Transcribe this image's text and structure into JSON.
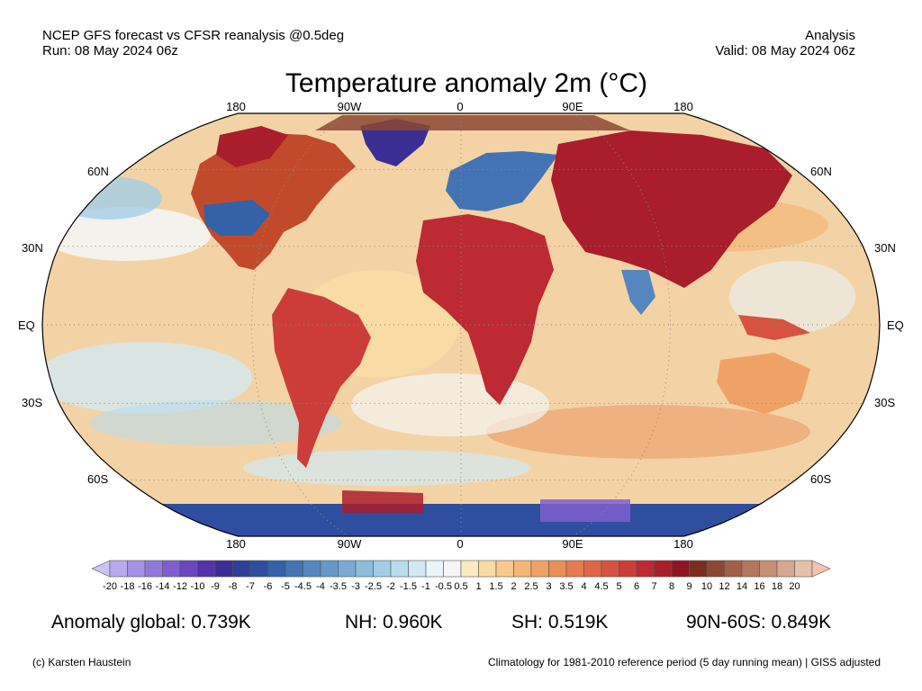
{
  "header": {
    "left_line1": "NCEP GFS forecast vs CFSR reanalysis @0.5deg",
    "left_line2": "Run: 08 May 2024 06z",
    "right_line1": "Analysis",
    "right_line2": "Valid: 08 May 2024 06z"
  },
  "title": "Temperature anomaly 2m (°C)",
  "map": {
    "projection": "robinson",
    "lon_labels_top": [
      "180",
      "90W",
      "0",
      "90E",
      "180"
    ],
    "lon_labels_bottom": [
      "180",
      "90W",
      "0",
      "90E",
      "180"
    ],
    "lat_labels": [
      "60N",
      "30N",
      "EQ",
      "30S",
      "60S"
    ],
    "gridlines": "dotted",
    "ocean_color": "#f3d3a6",
    "land_color": "#c24a2c"
  },
  "colorbar": {
    "ticks": [
      "-20",
      "-18",
      "-16",
      "-14",
      "-12",
      "-10",
      "-9",
      "-8",
      "-7",
      "-6",
      "-5",
      "-4.5",
      "-4",
      "-3.5",
      "-3",
      "-2.5",
      "-2",
      "-1.5",
      "-1",
      "-0.5",
      "0.5",
      "1",
      "1.5",
      "2",
      "2.5",
      "3",
      "3.5",
      "4",
      "4.5",
      "5",
      "6",
      "7",
      "8",
      "9",
      "10",
      "12",
      "14",
      "16",
      "18",
      "20"
    ],
    "low_color": "#c9c3f5",
    "high_color": "#f2c4b0",
    "colors": [
      "#b7a9ee",
      "#a591e6",
      "#9378db",
      "#7f5fce",
      "#6a47bd",
      "#5532a8",
      "#3a2e95",
      "#2f3f96",
      "#2f4e9f",
      "#3561a8",
      "#4473b3",
      "#5586be",
      "#6698c9",
      "#79aad3",
      "#8dbcdc",
      "#a3cde5",
      "#badcec",
      "#d2e9f3",
      "#e9f4f9",
      "#f5f5f5",
      "#fbe9c2",
      "#f9dba6",
      "#f7c98c",
      "#f4b677",
      "#f0a266",
      "#eb8f59",
      "#e57b4f",
      "#de6647",
      "#d65241",
      "#cc3d3a",
      "#bd2a33",
      "#a91d2c",
      "#8f1524",
      "#7a2e1e",
      "#8c4634",
      "#a25e47",
      "#b4765d",
      "#c68f76",
      "#d6a890",
      "#e5c0aa"
    ]
  },
  "stats": {
    "global": "Anomaly global: 0.739K",
    "nh": "NH: 0.960K",
    "sh": "SH: 0.519K",
    "band": "90N-60S: 0.849K"
  },
  "footer": {
    "left": "(c) Karsten Haustein",
    "right": "Climatology for 1981-2010 reference period (5 day running mean) | GISS adjusted"
  }
}
